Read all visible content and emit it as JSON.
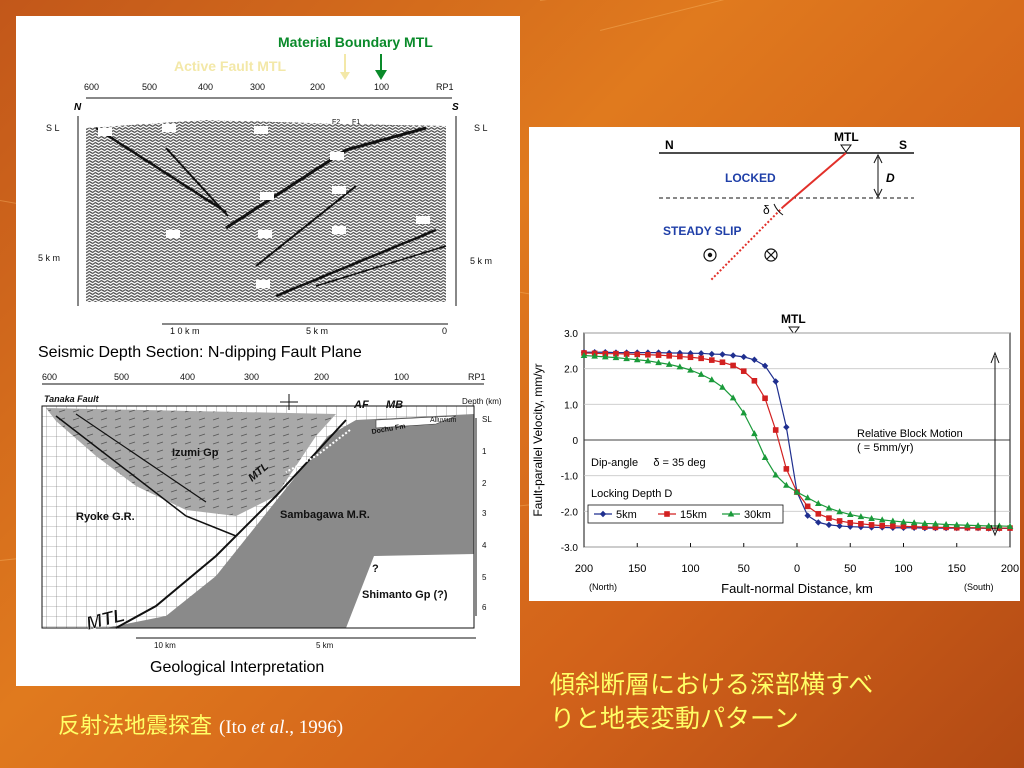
{
  "left_top": {
    "boundary_label": "Material Boundary MTL",
    "active_fault_label": "Active Fault MTL",
    "distance_ticks": [
      "600",
      "500",
      "400",
      "300",
      "200",
      "100",
      "RP1"
    ],
    "dir_n": "N",
    "dir_s": "S",
    "depth_left": [
      "S L",
      "5 k m"
    ],
    "depth_right": [
      "S L",
      "5 k m"
    ],
    "fault_labels": [
      "F2",
      "F1"
    ],
    "bottom_ticks": [
      "1 0 k m",
      "5 k m",
      "0"
    ],
    "caption": "Seismic Depth Section: N-dipping Fault Plane"
  },
  "left_bottom": {
    "distance_ticks": [
      "600",
      "500",
      "400",
      "300",
      "200",
      "100",
      "RP1"
    ],
    "tanaka_fault": "Tanaka Fault",
    "af": "AF",
    "mb": "MB",
    "depth_km": "Depth (km)",
    "alluvium": "Alluvium",
    "dochu": "Dochu Fm",
    "izumi": "Izumi Gp",
    "mtl_small": "MTL",
    "ryoke": "Ryoke G.R.",
    "sambagawa": "Sambagawa M.R.",
    "question": "?",
    "shimanto": "Shimanto Gp (?)",
    "mtl_big": "MTL",
    "depth_ticks": [
      "SL",
      "1",
      "2",
      "3",
      "4",
      "5",
      "6"
    ],
    "bottom_ticks": [
      "10 km",
      "5 km"
    ],
    "caption": "Geological Interpretation"
  },
  "right_diagram": {
    "mtl": "MTL",
    "n": "N",
    "s": "S",
    "locked": "LOCKED",
    "d": "D",
    "delta": "δ",
    "steady_slip": "STEADY SLIP"
  },
  "chart_text": {
    "mtl": "MTL",
    "north": "(North)",
    "south": "(South)",
    "relative_motion_1": "Relative Block Motion",
    "relative_motion_2": "( = 5mm/yr)",
    "dip_angle": "Dip-angle     δ = 35 deg",
    "locking_depth": "Locking Depth D"
  },
  "chart_data": {
    "type": "line",
    "xlabel": "Fault-normal Distance, km",
    "ylabel": "Fault-parallel Velocity, mm/yr",
    "xlim": [
      -200,
      200
    ],
    "ylim": [
      -3.0,
      3.0
    ],
    "x_tick_labels": [
      "200",
      "150",
      "100",
      "50",
      "0",
      "50",
      "100",
      "150",
      "200"
    ],
    "y_tick_labels": [
      "3.0",
      "2.0",
      "1.0",
      "0",
      "-1.0",
      "-2.0",
      "-3.0"
    ],
    "grid": true,
    "legend_position": "bottom-left",
    "series": [
      {
        "name": "5km",
        "color": "#1f2f8f",
        "marker": "diamond",
        "x": [
          -200,
          -190,
          -180,
          -170,
          -160,
          -150,
          -140,
          -130,
          -120,
          -110,
          -100,
          -90,
          -80,
          -70,
          -60,
          -50,
          -40,
          -30,
          -20,
          -10,
          0,
          10,
          20,
          30,
          40,
          50,
          60,
          70,
          80,
          90,
          100,
          110,
          120,
          130,
          140,
          150,
          160,
          170,
          180,
          190,
          200
        ],
        "y": [
          2.46,
          2.46,
          2.46,
          2.45,
          2.45,
          2.45,
          2.45,
          2.45,
          2.44,
          2.44,
          2.43,
          2.43,
          2.41,
          2.4,
          2.37,
          2.33,
          2.25,
          2.08,
          1.64,
          0.36,
          -1.46,
          -2.12,
          -2.31,
          -2.38,
          -2.41,
          -2.43,
          -2.44,
          -2.45,
          -2.45,
          -2.46,
          -2.46,
          -2.46,
          -2.47,
          -2.47,
          -2.47,
          -2.47,
          -2.47,
          -2.47,
          -2.48,
          -2.48,
          -2.48
        ]
      },
      {
        "name": "15km",
        "color": "#d22020",
        "marker": "square",
        "x": [
          -200,
          -190,
          -180,
          -170,
          -160,
          -150,
          -140,
          -130,
          -120,
          -110,
          -100,
          -90,
          -80,
          -70,
          -60,
          -50,
          -40,
          -30,
          -20,
          -10,
          0,
          10,
          20,
          30,
          40,
          50,
          60,
          70,
          80,
          90,
          100,
          110,
          120,
          130,
          140,
          150,
          160,
          170,
          180,
          190,
          200
        ],
        "y": [
          2.44,
          2.43,
          2.42,
          2.42,
          2.41,
          2.4,
          2.39,
          2.38,
          2.36,
          2.34,
          2.32,
          2.29,
          2.24,
          2.18,
          2.09,
          1.93,
          1.66,
          1.17,
          0.28,
          -0.81,
          -1.46,
          -1.86,
          -2.07,
          -2.19,
          -2.27,
          -2.32,
          -2.35,
          -2.38,
          -2.4,
          -2.41,
          -2.42,
          -2.43,
          -2.44,
          -2.45,
          -2.45,
          -2.46,
          -2.46,
          -2.46,
          -2.47,
          -2.47,
          -2.47
        ]
      },
      {
        "name": "30km",
        "color": "#1a9a3a",
        "marker": "triangle",
        "x": [
          -200,
          -190,
          -180,
          -170,
          -160,
          -150,
          -140,
          -130,
          -120,
          -110,
          -100,
          -90,
          -80,
          -70,
          -60,
          -50,
          -40,
          -30,
          -20,
          -10,
          0,
          10,
          20,
          30,
          40,
          50,
          60,
          70,
          80,
          90,
          100,
          110,
          120,
          130,
          140,
          150,
          160,
          170,
          180,
          190,
          200
        ],
        "y": [
          2.37,
          2.35,
          2.33,
          2.31,
          2.28,
          2.25,
          2.22,
          2.17,
          2.12,
          2.05,
          1.96,
          1.84,
          1.69,
          1.48,
          1.18,
          0.76,
          0.18,
          -0.49,
          -0.98,
          -1.27,
          -1.46,
          -1.62,
          -1.78,
          -1.91,
          -2.01,
          -2.09,
          -2.15,
          -2.2,
          -2.24,
          -2.27,
          -2.3,
          -2.32,
          -2.34,
          -2.35,
          -2.37,
          -2.38,
          -2.39,
          -2.4,
          -2.41,
          -2.41,
          -2.42
        ]
      }
    ]
  },
  "slide": {
    "left_title": "反射法地震探査",
    "citation_pre": "(Ito ",
    "citation_em": "et al",
    "citation_post": "., 1996)",
    "right_title_line1": "傾斜断層における深部横すべ",
    "right_title_line2": "りと地表変動パターン"
  }
}
